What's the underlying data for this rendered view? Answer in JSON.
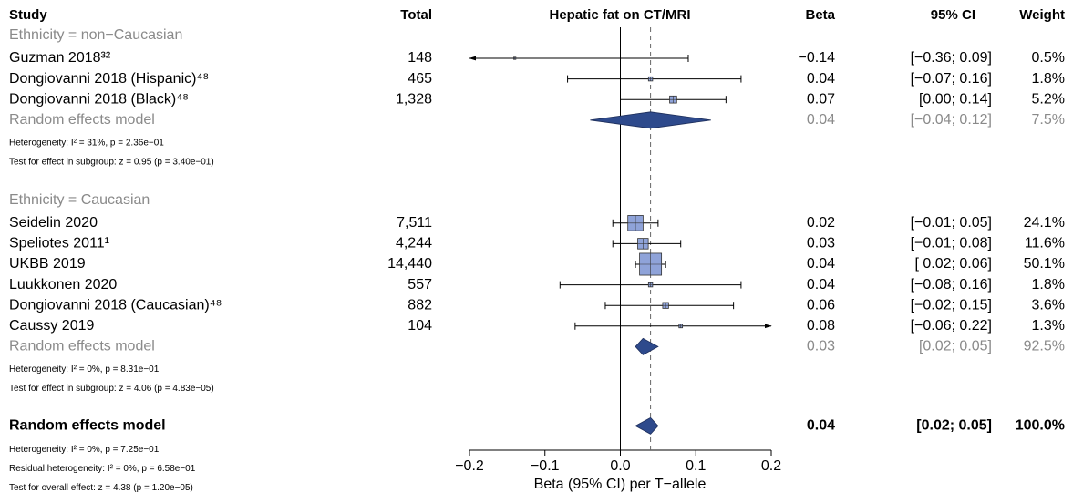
{
  "chart_data": {
    "type": "forest",
    "columns": {
      "study": "Study",
      "total": "Total",
      "plot": "Hepatic fat on CT/MRI",
      "beta": "Beta",
      "ci": "95% CI",
      "weight": "Weight"
    },
    "xlabel": "Beta (95% CI) per T−allele",
    "xlim": [
      -0.2,
      0.2
    ],
    "xticks": [
      {
        "value": -0.2,
        "label": "−0.2"
      },
      {
        "value": -0.1,
        "label": "−0.1"
      },
      {
        "value": 0,
        "label": "0.0"
      },
      {
        "value": 0.1,
        "label": "0.1"
      },
      {
        "value": 0.2,
        "label": "0.2"
      }
    ],
    "square_color": "#8fa3d9",
    "diamond_color": "#2e4a8c",
    "groups": [
      {
        "label": "Ethnicity = non−Caucasian",
        "studies": [
          {
            "name": "Guzman 2018³²",
            "total": 148,
            "beta": -0.14,
            "beta_label": "−0.14",
            "ci_lower": -0.36,
            "ci_upper": 0.09,
            "ci_label": "[−0.36; 0.09]",
            "weight": 0.5,
            "weight_label": "0.5%"
          },
          {
            "name": "Dongiovanni 2018 (Hispanic)⁴⁸",
            "total": 465,
            "beta": 0.04,
            "ci_lower": -0.07,
            "ci_upper": 0.16,
            "ci_label": "[−0.07; 0.16]",
            "weight": 1.8,
            "weight_label": "1.8%"
          },
          {
            "name": "Dongiovanni 2018 (Black)⁴⁸",
            "total": 1328,
            "total_label": "1,328",
            "beta": 0.07,
            "ci_lower": 0.0,
            "ci_upper": 0.14,
            "ci_label": "[0.00; 0.14]",
            "weight": 5.2,
            "weight_label": "5.2%"
          }
        ],
        "summary": {
          "name": "Random effects model",
          "beta": 0.04,
          "ci_lower": -0.04,
          "ci_upper": 0.12,
          "ci_label": "[−0.04; 0.12]",
          "weight": 7.5,
          "weight_label": "7.5%"
        },
        "notes": [
          "Heterogeneity: I² = 31%, p = 2.36e−01",
          "Test for effect in subgroup: z = 0.95 (p = 3.40e−01)"
        ]
      },
      {
        "label": "Ethnicity = Caucasian",
        "studies": [
          {
            "name": "Seidelin 2020",
            "total": 7511,
            "total_label": "7,511",
            "beta": 0.02,
            "ci_lower": -0.01,
            "ci_upper": 0.05,
            "ci_label": "[−0.01; 0.05]",
            "weight": 24.1,
            "weight_label": "24.1%"
          },
          {
            "name": "Speliotes 2011¹",
            "total": 4244,
            "total_label": "4,244",
            "beta": 0.03,
            "ci_lower": -0.01,
            "ci_upper": 0.08,
            "ci_label": "[−0.01; 0.08]",
            "weight": 11.6,
            "weight_label": "11.6%"
          },
          {
            "name": "UKBB 2019",
            "total": 14440,
            "total_label": "14,440",
            "beta": 0.04,
            "ci_lower": 0.02,
            "ci_upper": 0.06,
            "ci_label": "[ 0.02; 0.06]",
            "weight": 50.1,
            "weight_label": "50.1%"
          },
          {
            "name": "Luukkonen 2020",
            "total": 557,
            "beta": 0.04,
            "ci_lower": -0.08,
            "ci_upper": 0.16,
            "ci_label": "[−0.08; 0.16]",
            "weight": 1.8,
            "weight_label": "1.8%"
          },
          {
            "name": "Dongiovanni 2018 (Caucasian)⁴⁸",
            "total": 882,
            "beta": 0.06,
            "ci_lower": -0.02,
            "ci_upper": 0.15,
            "ci_label": "[−0.02; 0.15]",
            "weight": 3.6,
            "weight_label": "3.6%"
          },
          {
            "name": "Caussy 2019",
            "total": 104,
            "beta": 0.08,
            "ci_lower": -0.06,
            "ci_upper": 0.22,
            "ci_label": "[−0.06; 0.22]",
            "weight": 1.3,
            "weight_label": "1.3%"
          }
        ],
        "summary": {
          "name": "Random effects model",
          "beta": 0.03,
          "ci_lower": 0.02,
          "ci_upper": 0.05,
          "ci_label": "[0.02; 0.05]",
          "weight": 92.5,
          "weight_label": "92.5%"
        },
        "notes": [
          "Heterogeneity: I² = 0%, p = 8.31e−01",
          "Test for effect in subgroup: z = 4.06 (p = 4.83e−05)"
        ]
      }
    ],
    "overall": {
      "name": "Random effects model",
      "beta": 0.04,
      "ci_lower": 0.02,
      "ci_upper": 0.05,
      "ci_label": "[0.02; 0.05]",
      "weight": 100,
      "weight_label": "100.0%",
      "notes": [
        "Heterogeneity: I² = 0%, p = 7.25e−01",
        "Residual heterogeneity: I² = 0%, p = 6.58e−01",
        "Test for overall effect: z = 4.38 (p = 1.20e−05)"
      ]
    }
  }
}
